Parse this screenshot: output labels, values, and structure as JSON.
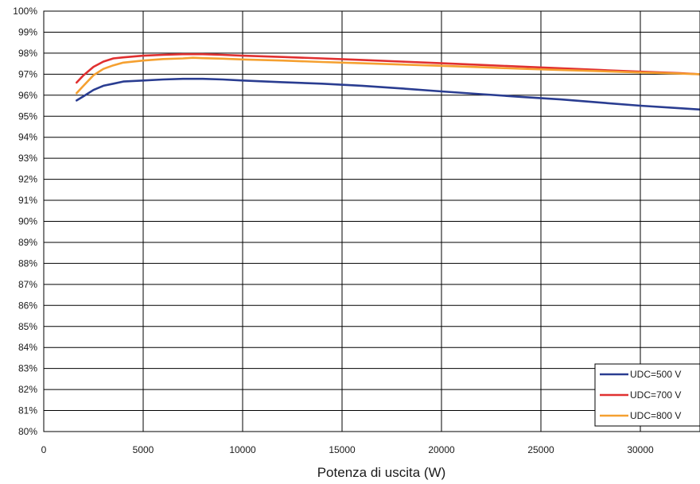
{
  "chart_data": {
    "type": "line",
    "title": "",
    "xlabel": "Potenza di uscita (W)",
    "ylabel": "",
    "xlim": [
      0,
      33000
    ],
    "ylim": [
      80,
      100
    ],
    "x_ticks": [
      0,
      5000,
      10000,
      15000,
      20000,
      25000,
      30000
    ],
    "x_tick_labels": [
      "0",
      "5000",
      "10000",
      "15000",
      "20000",
      "25000",
      "30000"
    ],
    "y_ticks": [
      80,
      81,
      82,
      83,
      84,
      85,
      86,
      87,
      88,
      89,
      90,
      91,
      92,
      93,
      94,
      95,
      96,
      97,
      98,
      99,
      100
    ],
    "y_tick_labels": [
      "80%",
      "81%",
      "82%",
      "83%",
      "84%",
      "85%",
      "86%",
      "87%",
      "88%",
      "89%",
      "90%",
      "91%",
      "92%",
      "93%",
      "94%",
      "95%",
      "96%",
      "97%",
      "98%",
      "99%",
      "100%"
    ],
    "grid": true,
    "legend_position": "bottom-right",
    "series": [
      {
        "name": "UDC=500 V",
        "color": "#2a3d91",
        "points": [
          [
            1650,
            95.75
          ],
          [
            2000,
            95.95
          ],
          [
            2500,
            96.25
          ],
          [
            3000,
            96.45
          ],
          [
            3500,
            96.55
          ],
          [
            4000,
            96.65
          ],
          [
            5000,
            96.7
          ],
          [
            6000,
            96.75
          ],
          [
            7000,
            96.78
          ],
          [
            8000,
            96.78
          ],
          [
            9000,
            96.75
          ],
          [
            10000,
            96.7
          ],
          [
            12000,
            96.62
          ],
          [
            14000,
            96.55
          ],
          [
            16000,
            96.45
          ],
          [
            18000,
            96.32
          ],
          [
            20000,
            96.18
          ],
          [
            22000,
            96.05
          ],
          [
            24000,
            95.92
          ],
          [
            26000,
            95.8
          ],
          [
            28000,
            95.65
          ],
          [
            30000,
            95.5
          ],
          [
            32000,
            95.38
          ],
          [
            33000,
            95.32
          ]
        ]
      },
      {
        "name": "UDC=700 V",
        "color": "#e03030",
        "points": [
          [
            1650,
            96.6
          ],
          [
            2000,
            96.95
          ],
          [
            2500,
            97.35
          ],
          [
            3000,
            97.6
          ],
          [
            3500,
            97.75
          ],
          [
            4000,
            97.8
          ],
          [
            5000,
            97.88
          ],
          [
            6000,
            97.92
          ],
          [
            7000,
            97.95
          ],
          [
            8000,
            97.95
          ],
          [
            9000,
            97.92
          ],
          [
            10000,
            97.88
          ],
          [
            12000,
            97.82
          ],
          [
            14000,
            97.75
          ],
          [
            16000,
            97.68
          ],
          [
            18000,
            97.6
          ],
          [
            20000,
            97.52
          ],
          [
            22000,
            97.44
          ],
          [
            24000,
            97.36
          ],
          [
            26000,
            97.28
          ],
          [
            28000,
            97.2
          ],
          [
            30000,
            97.12
          ],
          [
            32000,
            97.05
          ],
          [
            33000,
            97.0
          ]
        ]
      },
      {
        "name": "UDC=800 V",
        "color": "#f5a030",
        "points": [
          [
            1650,
            96.1
          ],
          [
            2000,
            96.45
          ],
          [
            2500,
            96.95
          ],
          [
            3000,
            97.25
          ],
          [
            3500,
            97.42
          ],
          [
            4000,
            97.55
          ],
          [
            5000,
            97.65
          ],
          [
            6000,
            97.72
          ],
          [
            7000,
            97.75
          ],
          [
            7500,
            97.78
          ],
          [
            8000,
            97.76
          ],
          [
            9000,
            97.74
          ],
          [
            10000,
            97.7
          ],
          [
            12000,
            97.65
          ],
          [
            14000,
            97.58
          ],
          [
            16000,
            97.52
          ],
          [
            18000,
            97.46
          ],
          [
            20000,
            97.4
          ],
          [
            22000,
            97.33
          ],
          [
            24000,
            97.26
          ],
          [
            26000,
            97.2
          ],
          [
            28000,
            97.14
          ],
          [
            30000,
            97.08
          ],
          [
            32000,
            97.03
          ],
          [
            33000,
            97.0
          ]
        ]
      }
    ]
  }
}
